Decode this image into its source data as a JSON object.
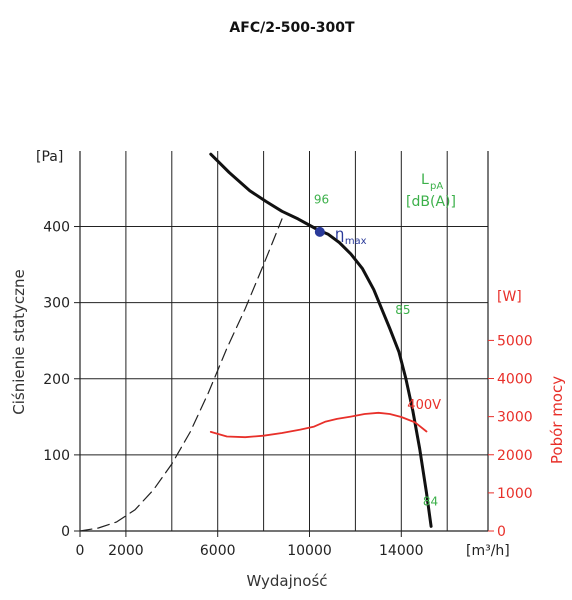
{
  "chart_data": {
    "type": "line",
    "title": "AFC/2-500-300T",
    "xlabel": "Wydajność",
    "ylabel": "Ciśnienie statyczne",
    "y2label": "Pobór mocy",
    "x_unit": "[m³/h]",
    "y_unit": "[Pa]",
    "y2_unit": "[W]",
    "xlim": [
      0,
      17800
    ],
    "ylim": [
      0,
      500
    ],
    "y2lim": [
      0,
      6600
    ],
    "x_ticks": [
      0,
      2000,
      6000,
      10000,
      14000
    ],
    "y_ticks": [
      0,
      100,
      200,
      300,
      400
    ],
    "y2_ticks": [
      0,
      1000,
      2000,
      3000,
      4000,
      5000
    ],
    "grid": true,
    "series": [
      {
        "axis": "left",
        "x": [
          5700,
          6500,
          7400,
          8100,
          8800,
          9500,
          10100,
          10400,
          10800,
          11300,
          11800,
          12300,
          12800,
          13200,
          13500,
          13900,
          14200,
          14500,
          14800,
          15100,
          15300
        ],
        "y": [
          495,
          471,
          447,
          433,
          420,
          410,
          400,
          395,
          390,
          379,
          364,
          345,
          317,
          288,
          266,
          235,
          200,
          158,
          108,
          50,
          6
        ]
      },
      {
        "axis": "left",
        "dashed": true,
        "x": [
          0,
          800,
          1600,
          2400,
          3200,
          4000,
          4800,
          5600,
          6400,
          7200,
          8000,
          8800
        ],
        "y": [
          0,
          4,
          12,
          28,
          54,
          88,
          130,
          182,
          240,
          292,
          350,
          410
        ]
      },
      {
        "name": "400V",
        "axis": "right",
        "x": [
          5700,
          6400,
          7200,
          8000,
          8800,
          9600,
          10200,
          10700,
          11200,
          11800,
          12400,
          13000,
          13500,
          14000,
          14600,
          15100
        ],
        "y": [
          2600,
          2480,
          2460,
          2500,
          2570,
          2660,
          2740,
          2870,
          2940,
          3000,
          3070,
          3100,
          3070,
          2990,
          2850,
          2610
        ]
      }
    ],
    "efficiency_point": {
      "x": 10450,
      "y": 393,
      "label": "η",
      "subscript": "max"
    },
    "lpa_header": [
      "LpA",
      "[dB(A)]"
    ],
    "lpa_labels": [
      {
        "x": 10450,
        "y": 425,
        "text": "96"
      },
      {
        "x": 14000,
        "y": 280,
        "text": "85"
      },
      {
        "x": 15200,
        "y": 28,
        "text": "84"
      }
    ]
  },
  "colors": {
    "pressure": "#111111",
    "power": "#e8302a",
    "lpa": "#3cb04a",
    "eta": "#2a3a9a"
  }
}
